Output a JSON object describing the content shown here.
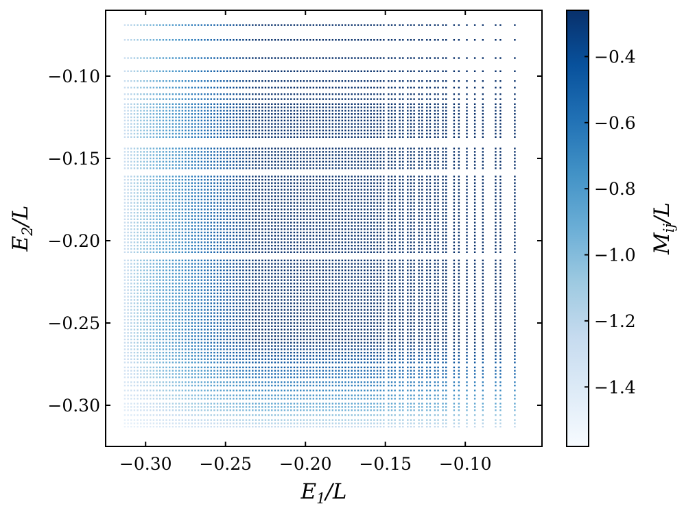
{
  "chart_data": {
    "type": "heatmap",
    "title": "",
    "xlabel": "E_1/L",
    "ylabel": "E_2/L",
    "colorbar_label": "M_ij/L",
    "xlim": [
      -0.325,
      -0.052
    ],
    "ylim": [
      -0.325,
      -0.06
    ],
    "x_ticks": [
      -0.3,
      -0.25,
      -0.2,
      -0.15,
      -0.1
    ],
    "x_tick_labels": [
      "−0.30",
      "−0.25",
      "−0.20",
      "−0.15",
      "−0.10"
    ],
    "y_ticks": [
      -0.1,
      -0.15,
      -0.2,
      -0.25,
      -0.3
    ],
    "y_tick_labels": [
      "−0.10",
      "−0.15",
      "−0.20",
      "−0.25",
      "−0.30"
    ],
    "colorbar": {
      "colormap": "Blues_r",
      "range": [
        -1.58,
        -0.26
      ],
      "ticks": [
        -0.4,
        -0.6,
        -0.8,
        -1.0,
        -1.2,
        -1.4
      ],
      "tick_labels": [
        "−0.4",
        "−0.6",
        "−0.8",
        "−1.0",
        "−1.2",
        "−1.4"
      ],
      "color_low": "#f7fbff",
      "color_high": "#08306b"
    },
    "grid": false,
    "energy_levels_x": [
      -0.313,
      -0.311,
      -0.309,
      -0.307,
      -0.305,
      -0.303,
      -0.301,
      -0.299,
      -0.297,
      -0.295,
      -0.293,
      -0.291,
      -0.289,
      -0.287,
      -0.285,
      -0.283,
      -0.281,
      -0.279,
      -0.277,
      -0.275,
      -0.273,
      -0.271,
      -0.269,
      -0.267,
      -0.265,
      -0.263,
      -0.261,
      -0.259,
      -0.257,
      -0.255,
      -0.253,
      -0.251,
      -0.249,
      -0.247,
      -0.245,
      -0.243,
      -0.241,
      -0.239,
      -0.237,
      -0.235,
      -0.233,
      -0.231,
      -0.229,
      -0.227,
      -0.225,
      -0.223,
      -0.221,
      -0.219,
      -0.217,
      -0.215,
      -0.213,
      -0.211,
      -0.209,
      -0.207,
      -0.205,
      -0.203,
      -0.201,
      -0.199,
      -0.197,
      -0.195,
      -0.193,
      -0.191,
      -0.189,
      -0.187,
      -0.185,
      -0.183,
      -0.181,
      -0.179,
      -0.177,
      -0.175,
      -0.173,
      -0.171,
      -0.169,
      -0.167,
      -0.165,
      -0.163,
      -0.161,
      -0.159,
      -0.157,
      -0.155,
      -0.153,
      -0.151,
      -0.148,
      -0.146,
      -0.144,
      -0.141,
      -0.139,
      -0.136,
      -0.134,
      -0.132,
      -0.129,
      -0.127,
      -0.124,
      -0.122,
      -0.119,
      -0.117,
      -0.114,
      -0.112,
      -0.107,
      -0.104,
      -0.099,
      -0.094,
      -0.089,
      -0.081,
      -0.078,
      -0.069
    ],
    "energy_levels_y": [
      -0.313,
      -0.311,
      -0.309,
      -0.306,
      -0.303,
      -0.301,
      -0.299,
      -0.296,
      -0.294,
      -0.291,
      -0.288,
      -0.286,
      -0.283,
      -0.281,
      -0.279,
      -0.277,
      -0.274,
      -0.272,
      -0.27,
      -0.268,
      -0.266,
      -0.264,
      -0.262,
      -0.26,
      -0.258,
      -0.256,
      -0.254,
      -0.252,
      -0.25,
      -0.248,
      -0.246,
      -0.244,
      -0.242,
      -0.24,
      -0.238,
      -0.236,
      -0.234,
      -0.232,
      -0.23,
      -0.228,
      -0.226,
      -0.224,
      -0.222,
      -0.22,
      -0.218,
      -0.216,
      -0.214,
      -0.212,
      -0.207,
      -0.205,
      -0.203,
      -0.201,
      -0.199,
      -0.197,
      -0.195,
      -0.193,
      -0.191,
      -0.189,
      -0.187,
      -0.185,
      -0.183,
      -0.181,
      -0.179,
      -0.177,
      -0.175,
      -0.173,
      -0.171,
      -0.169,
      -0.167,
      -0.165,
      -0.163,
      -0.161,
      -0.156,
      -0.154,
      -0.152,
      -0.15,
      -0.148,
      -0.146,
      -0.144,
      -0.137,
      -0.135,
      -0.133,
      -0.131,
      -0.129,
      -0.127,
      -0.125,
      -0.123,
      -0.121,
      -0.119,
      -0.117,
      -0.114,
      -0.111,
      -0.107,
      -0.103,
      -0.097,
      -0.089,
      -0.078,
      -0.069
    ]
  }
}
